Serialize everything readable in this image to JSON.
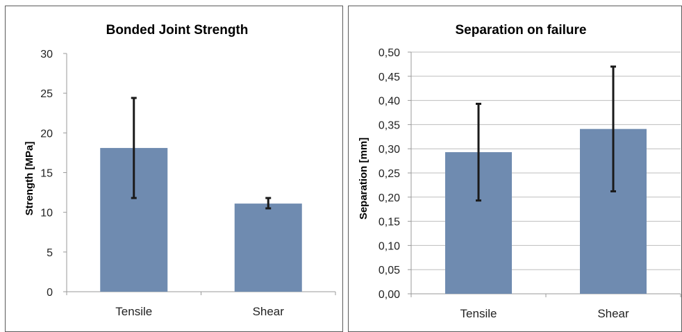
{
  "chart_data": [
    {
      "type": "bar",
      "title": "Bonded Joint Strength",
      "xlabel": "",
      "ylabel": "Strength [MPa]",
      "categories": [
        "Tensile",
        "Shear"
      ],
      "values": [
        18.1,
        11.1
      ],
      "error_low": [
        11.8,
        10.5
      ],
      "error_high": [
        24.4,
        11.8
      ],
      "ylim": [
        0,
        30
      ],
      "yticks": [
        "0",
        "5",
        "10",
        "15",
        "20",
        "25",
        "30"
      ],
      "grid": false,
      "bar_color": "#6f8bb0"
    },
    {
      "type": "bar",
      "title": "Separation on failure",
      "xlabel": "",
      "ylabel": "Separation [mm]",
      "categories": [
        "Tensile",
        "Shear"
      ],
      "values": [
        0.293,
        0.341
      ],
      "error_low": [
        0.193,
        0.212
      ],
      "error_high": [
        0.393,
        0.47
      ],
      "ylim": [
        0,
        0.5
      ],
      "yticks": [
        "0,00",
        "0,05",
        "0,10",
        "0,15",
        "0,20",
        "0,25",
        "0,30",
        "0,35",
        "0,40",
        "0,45",
        "0,50"
      ],
      "grid": true,
      "bar_color": "#6f8bb0"
    }
  ]
}
